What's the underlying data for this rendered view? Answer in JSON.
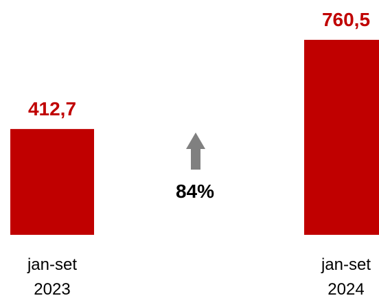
{
  "chart_data": {
    "type": "bar",
    "categories": [
      [
        "jan-set",
        "2023"
      ],
      [
        "jan-set",
        "2024"
      ]
    ],
    "values": [
      412.7,
      760.5
    ],
    "value_labels": [
      "412,7",
      "760,5"
    ],
    "ylim": [
      0,
      760.5
    ],
    "bar_color": "#c00000",
    "change": {
      "label": "84%",
      "direction": "up",
      "arrow_color": "#808080"
    }
  }
}
